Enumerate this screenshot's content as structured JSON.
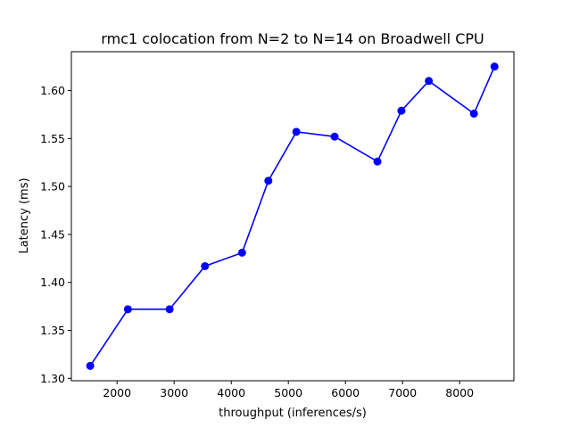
{
  "chart_data": {
    "type": "line",
    "title": "rmc1 colocation from N=2 to N=14 on Broadwell CPU",
    "xlabel": "throughput (inferences/s)",
    "ylabel": "Latency (ms)",
    "xlim": [
      1200,
      8950
    ],
    "ylim": [
      1.2975,
      1.6405
    ],
    "xticks": [
      2000,
      3000,
      4000,
      5000,
      6000,
      7000,
      8000
    ],
    "yticks": [
      1.3,
      1.35,
      1.4,
      1.45,
      1.5,
      1.55,
      1.6
    ],
    "xtick_labels": [
      "2000",
      "3000",
      "4000",
      "5000",
      "6000",
      "7000",
      "8000"
    ],
    "ytick_labels": [
      "1.30",
      "1.35",
      "1.40",
      "1.45",
      "1.50",
      "1.55",
      "1.60"
    ],
    "grid": false,
    "series": [
      {
        "color": "#0000ff",
        "marker": "circle",
        "x": [
          1530,
          2190,
          2920,
          3540,
          4190,
          4650,
          5140,
          5810,
          6560,
          6980,
          7460,
          8250,
          8610
        ],
        "y": [
          1.313,
          1.372,
          1.372,
          1.417,
          1.431,
          1.506,
          1.557,
          1.552,
          1.526,
          1.579,
          1.61,
          1.576,
          1.625
        ]
      }
    ]
  }
}
